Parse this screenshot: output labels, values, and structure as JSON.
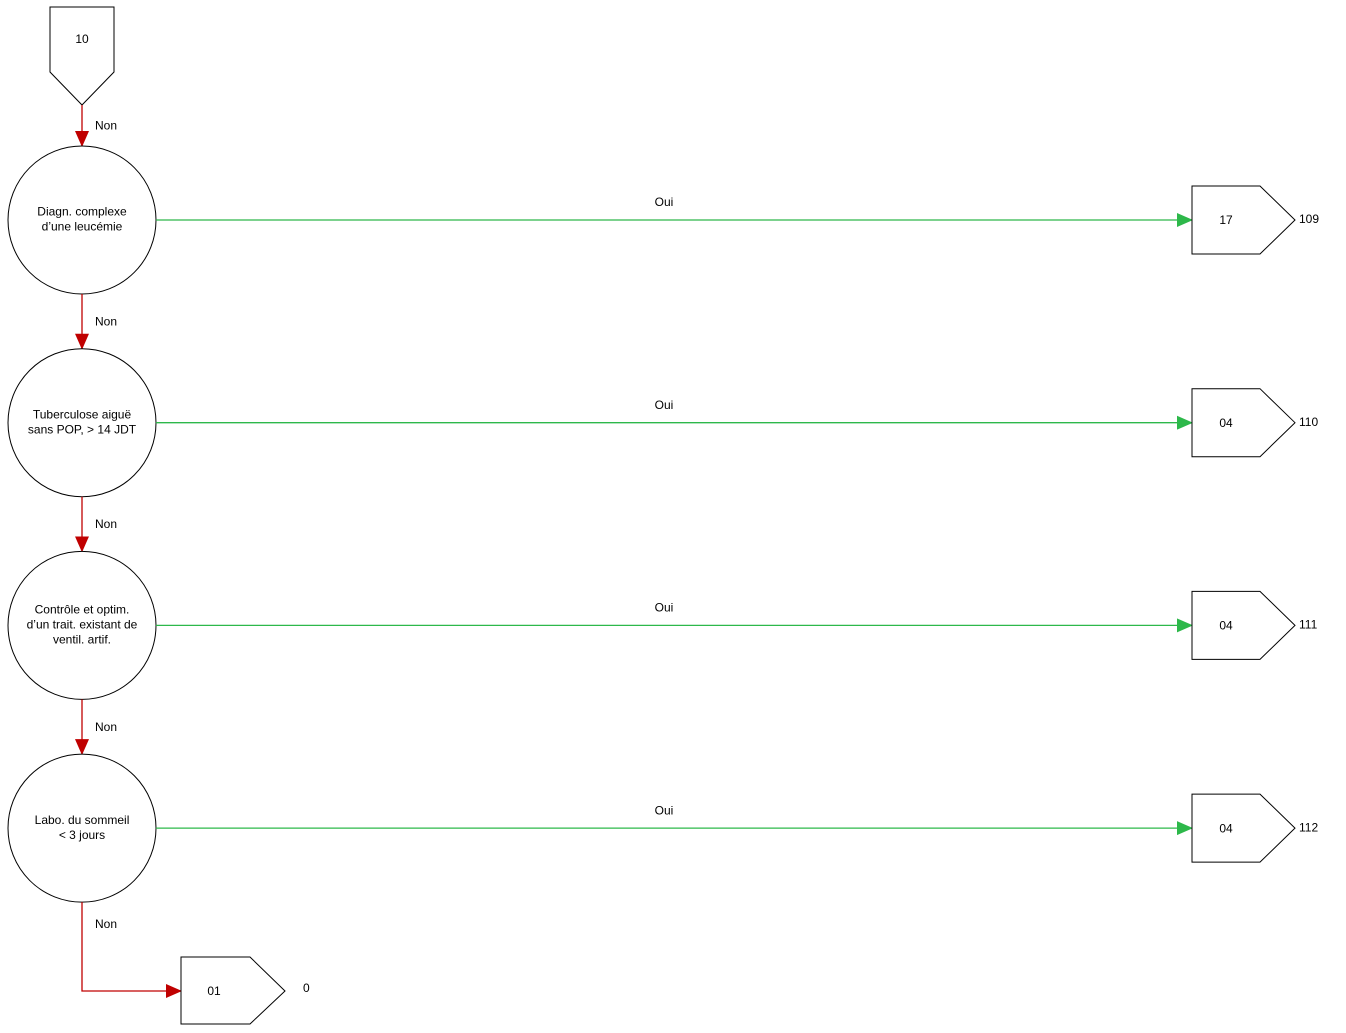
{
  "start": {
    "label": "10"
  },
  "decisions": [
    {
      "lines": [
        "Diagn. complexe",
        "d’une leucémie"
      ],
      "no_label": "Non",
      "yes_label": "Oui",
      "outcome": {
        "label": "17",
        "code": "109"
      }
    },
    {
      "lines": [
        "Tuberculose aiguë",
        "sans POP, > 14 JDT"
      ],
      "no_label": "Non",
      "yes_label": "Oui",
      "outcome": {
        "label": "04",
        "code": "110"
      }
    },
    {
      "lines": [
        "Contrôle et optim.",
        "d’un trait. existant de",
        "ventil. artif."
      ],
      "no_label": "Non",
      "yes_label": "Oui",
      "outcome": {
        "label": "04",
        "code": "111"
      }
    },
    {
      "lines": [
        "Labo. du sommeil",
        "< 3 jours"
      ],
      "no_label": "Non",
      "yes_label": "Oui",
      "outcome": {
        "label": "04",
        "code": "112"
      }
    }
  ],
  "final": {
    "no_label": "Non",
    "label": "01",
    "code": "0"
  }
}
